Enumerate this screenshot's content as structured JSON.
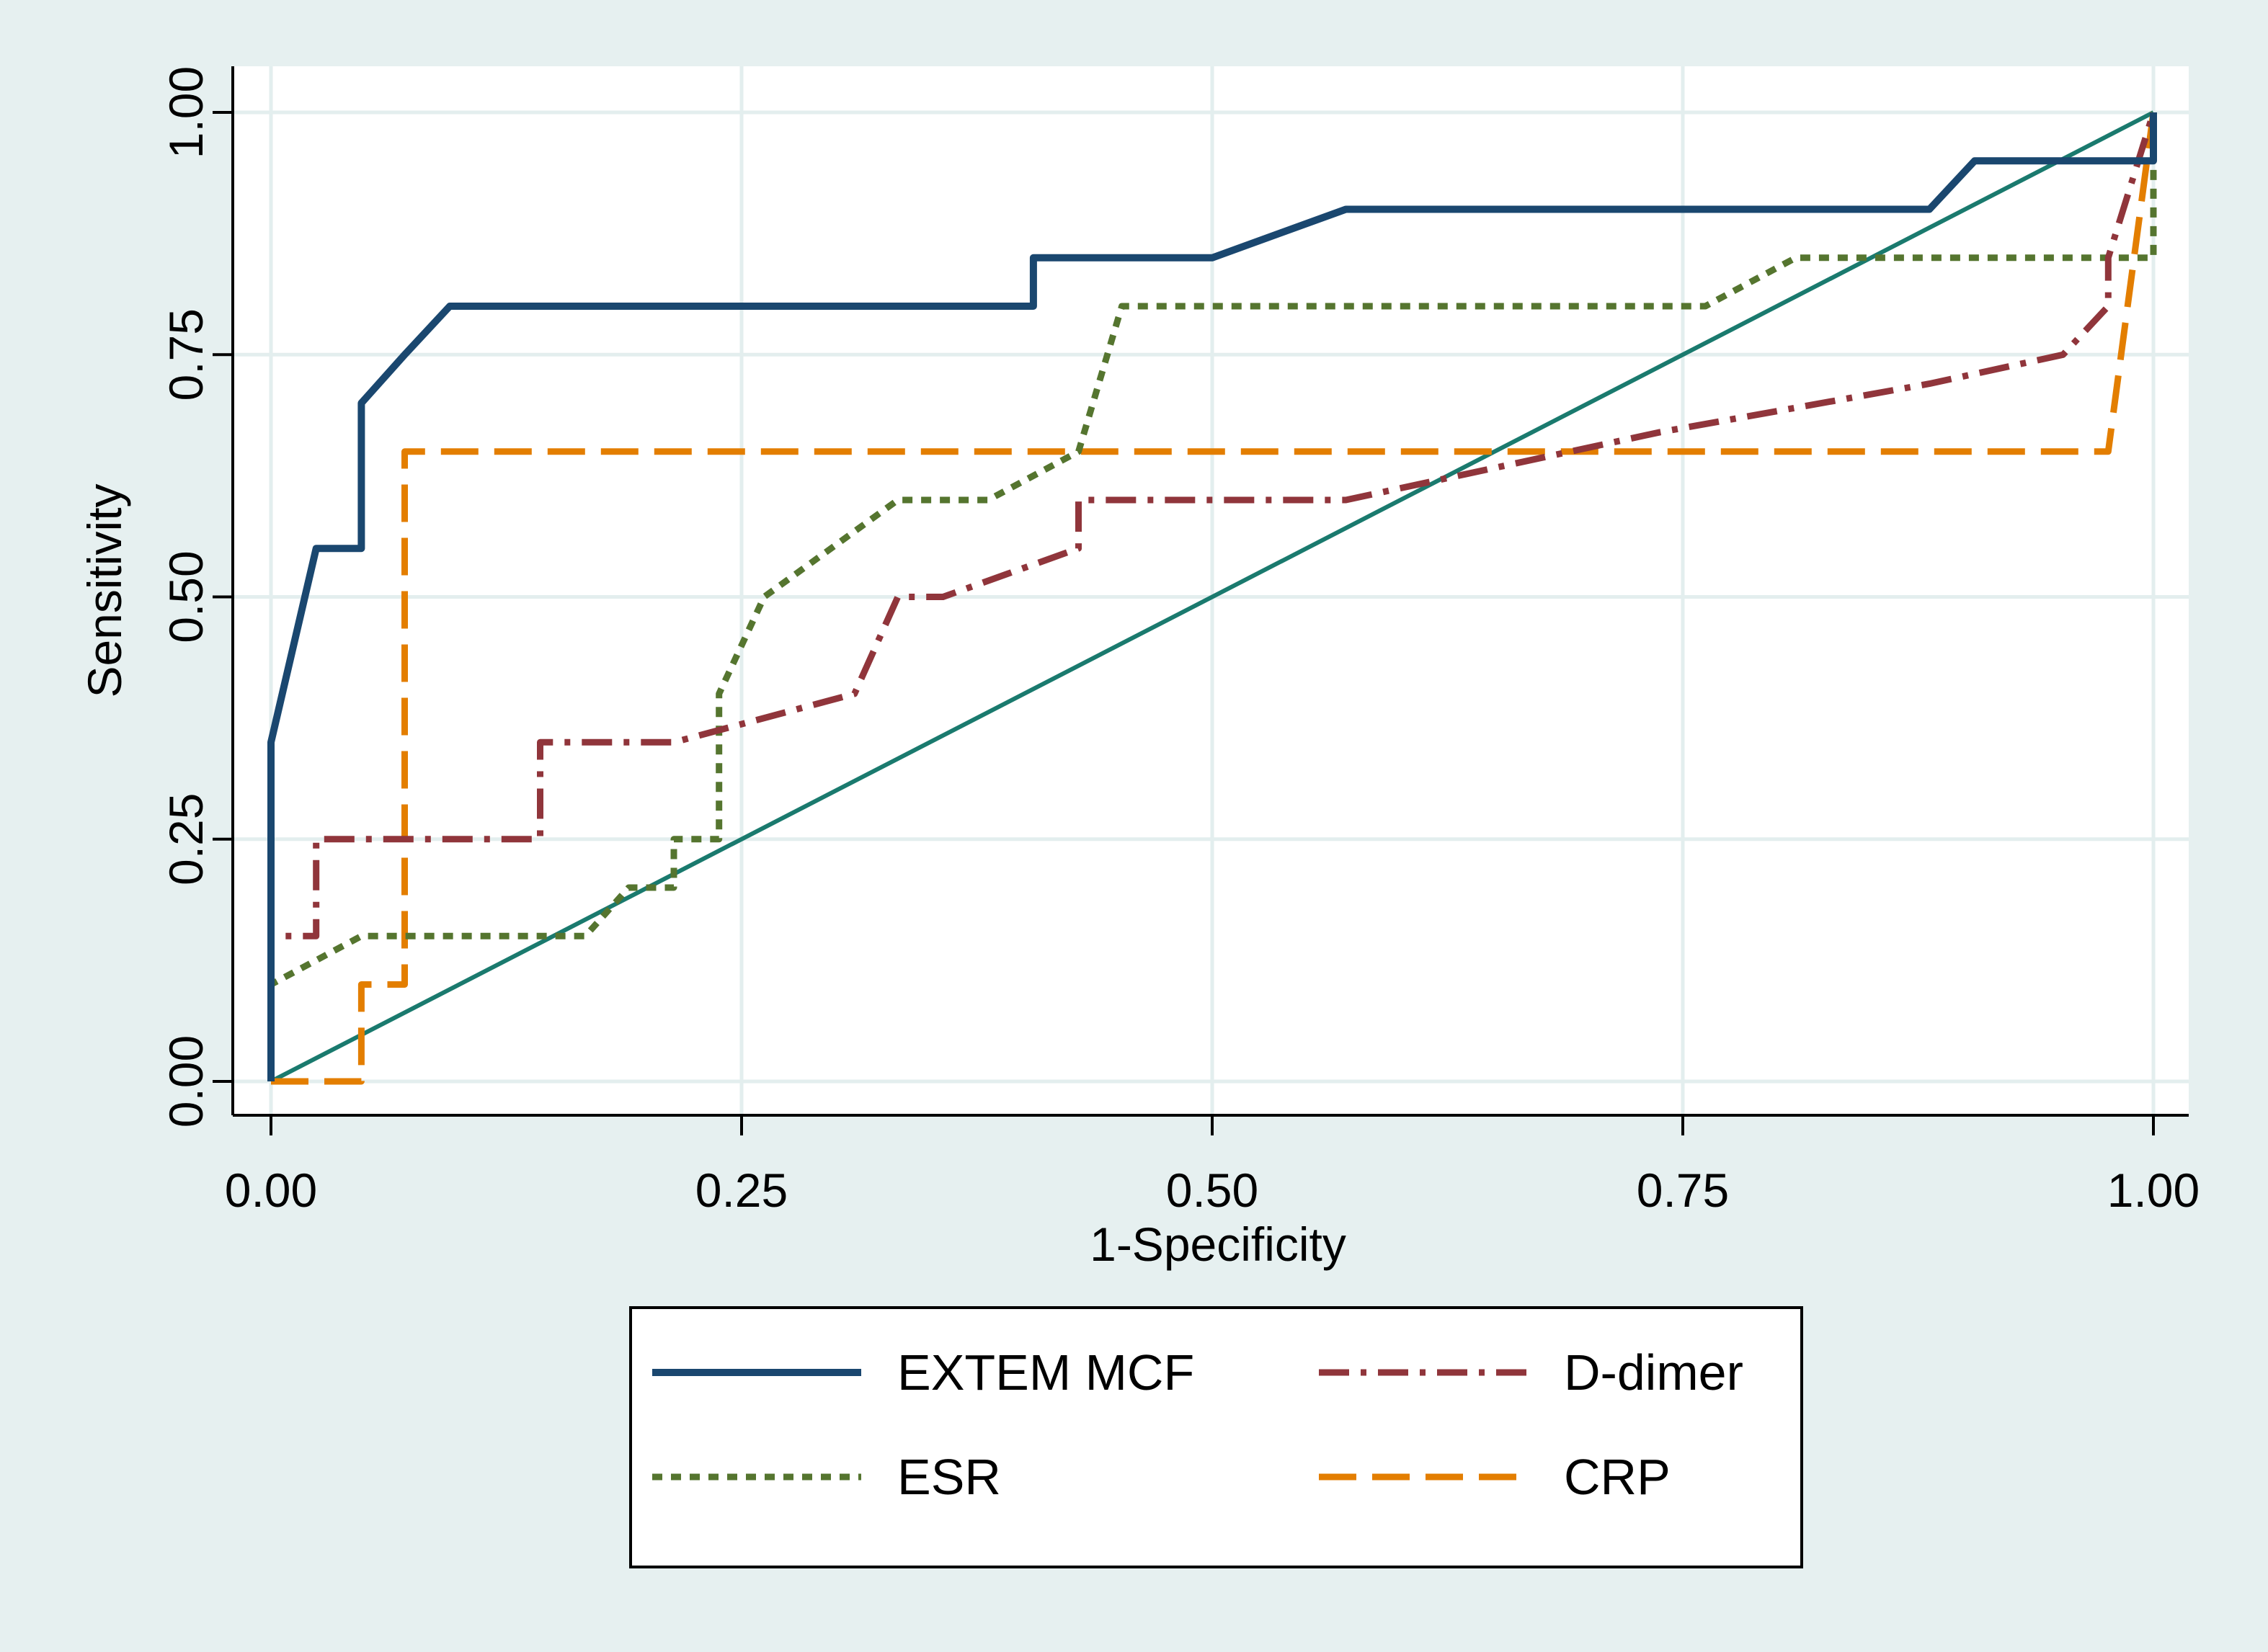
{
  "chart_data": {
    "type": "line",
    "title": "",
    "xlabel": "1-Specificity",
    "ylabel": "Sensitivity",
    "xlim": [
      0,
      1
    ],
    "ylim": [
      0,
      1
    ],
    "x_ticks": [
      "0.00",
      "0.25",
      "0.50",
      "0.75",
      "1.00"
    ],
    "y_ticks": [
      "0.00",
      "0.25",
      "0.50",
      "0.75",
      "1.00"
    ],
    "grid": true,
    "legend_position": "bottom",
    "colors": {
      "outer_background": "#e6f0f0",
      "plot_background": "#ffffff",
      "grid": "#e3eeee",
      "reference_line": "#1a7a6e"
    },
    "reference_line": {
      "x": [
        0,
        1
      ],
      "y": [
        0,
        1
      ]
    },
    "series": [
      {
        "name": "EXTEM MCF",
        "color": "#1a476f",
        "dash": "solid",
        "x": [
          0,
          0,
          0.024,
          0.048,
          0.048,
          0.071,
          0.095,
          0.405,
          0.405,
          0.5,
          0.571,
          0.881,
          0.905,
          1.0,
          1.0
        ],
        "y": [
          0,
          0.35,
          0.55,
          0.55,
          0.7,
          0.75,
          0.8,
          0.8,
          0.85,
          0.85,
          0.9,
          0.9,
          0.95,
          0.95,
          1.0
        ]
      },
      {
        "name": "D-dimer",
        "color": "#90353b",
        "dash": "dashdot",
        "x": [
          0,
          0,
          0.024,
          0.024,
          0.143,
          0.143,
          0.214,
          0.31,
          0.333,
          0.357,
          0.429,
          0.429,
          0.571,
          0.738,
          0.881,
          0.952,
          0.976,
          0.976,
          1.0
        ],
        "y": [
          0,
          0.15,
          0.15,
          0.25,
          0.25,
          0.35,
          0.35,
          0.4,
          0.5,
          0.5,
          0.55,
          0.6,
          0.6,
          0.67,
          0.72,
          0.75,
          0.8,
          0.85,
          1.0
        ]
      },
      {
        "name": "ESR",
        "color": "#55752f",
        "dash": "dotted",
        "x": [
          0,
          0,
          0.048,
          0.167,
          0.19,
          0.214,
          0.214,
          0.238,
          0.238,
          0.262,
          0.333,
          0.381,
          0.429,
          0.452,
          0.762,
          0.81,
          1.0,
          1.0
        ],
        "y": [
          0,
          0.1,
          0.15,
          0.15,
          0.2,
          0.2,
          0.25,
          0.25,
          0.4,
          0.5,
          0.6,
          0.6,
          0.65,
          0.8,
          0.8,
          0.85,
          0.85,
          1.0
        ]
      },
      {
        "name": "CRP",
        "color": "#e37e00",
        "dash": "dashed",
        "x": [
          0,
          0.048,
          0.048,
          0.071,
          0.071,
          0.976,
          1.0
        ],
        "y": [
          0,
          0,
          0.1,
          0.1,
          0.65,
          0.65,
          1.0
        ]
      }
    ]
  }
}
